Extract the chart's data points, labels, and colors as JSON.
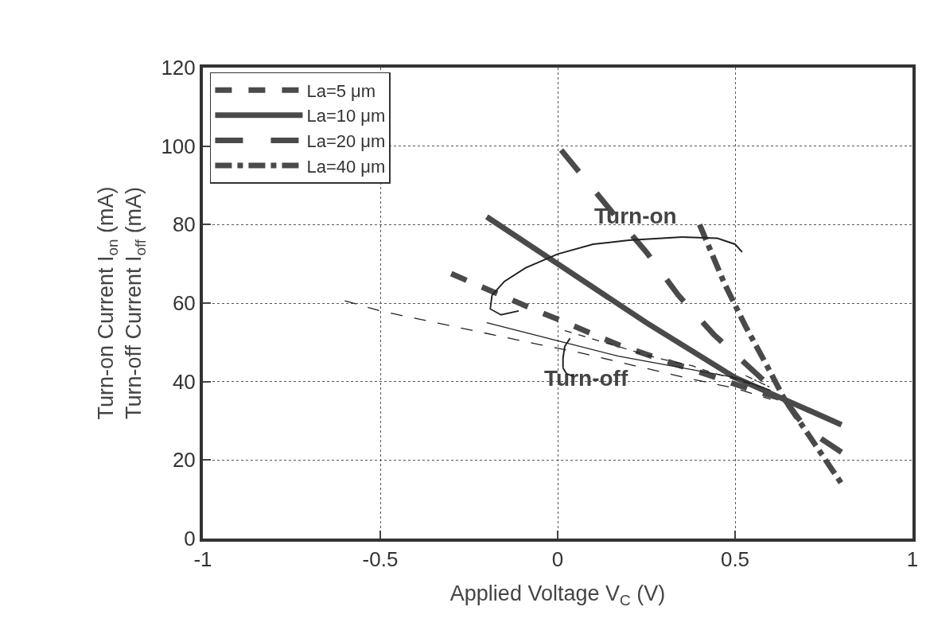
{
  "chart_data": {
    "type": "line",
    "xlabel": "Applied Voltage V$_{C}$ (V)",
    "ylabel": "Turn-on Current I$_{on}$ (mA)\nTurn-off Current I$_{off}$ (mA)",
    "xlim": [
      -1,
      1
    ],
    "xticks": [
      -1,
      -0.5,
      0,
      0.5,
      1
    ],
    "ylim": [
      0,
      120
    ],
    "yticks": [
      0,
      20,
      40,
      60,
      80,
      100,
      120
    ],
    "grid": true,
    "legend": "top left",
    "marker": "none",
    "series": [
      {
        "name": "La=5 μm",
        "color": "#4a4a4a",
        "line_style": "dashed",
        "x": [
          -0.3,
          -0.18,
          -0.06,
          0,
          0.17,
          0.3,
          0.43,
          0.55,
          0.64
        ],
        "values": [
          67.5,
          62.8,
          58.1,
          55.9,
          49.4,
          45.4,
          41.5,
          37.8,
          35.4
        ]
      },
      {
        "name": "La=10 μm",
        "color": "#4a4a4a",
        "line_style": "solid",
        "x": [
          -0.2,
          0,
          0.25,
          0.5,
          0.64,
          0.8
        ],
        "values": [
          82,
          70,
          55,
          41,
          35.4,
          29
        ]
      },
      {
        "name": "La=20 μm",
        "color": "#4a4a4a",
        "line_style": "longdash",
        "x": [
          0.01,
          0.155,
          0.25,
          0.34,
          0.44,
          0.56,
          0.64,
          0.7,
          0.8
        ],
        "values": [
          99,
          83,
          73,
          62,
          52,
          42,
          35.4,
          28,
          22
        ]
      },
      {
        "name": "La=40 μm",
        "color": "#4a4a4a",
        "line_style": "dashdot",
        "x": [
          0.4,
          0.47,
          0.53,
          0.59,
          0.64,
          0.8
        ],
        "values": [
          80,
          65,
          54,
          44,
          35.4,
          14
        ]
      },
      {
        "color": "#222222",
        "line_style": "dashed",
        "x": [
          0.02,
          0.13,
          0.28,
          0.38,
          0.43,
          0.59
        ],
        "values": [
          53,
          50,
          46,
          44,
          42.4,
          38.2
        ]
      },
      {
        "color": "#222222",
        "line_style": "solid",
        "x": [
          -0.2,
          0,
          0.17,
          0.5,
          0.6
        ],
        "values": [
          55,
          50.4,
          46.5,
          41,
          37.8
        ]
      },
      {
        "color": "#222222",
        "line_style": "longdash",
        "x": [
          -0.6,
          -0.5,
          -0.05,
          0.06,
          0.36,
          0.5,
          0.6
        ],
        "values": [
          60.6,
          58,
          49.4,
          47.4,
          41,
          38.3,
          35.5
        ]
      },
      {
        "color": "#222222",
        "line_style": "dashdot",
        "x": [
          0.53,
          0.6
        ],
        "values": [
          41.5,
          38.5
        ]
      }
    ],
    "annotations": [
      "Turn-on",
      "Turn-off"
    ]
  }
}
